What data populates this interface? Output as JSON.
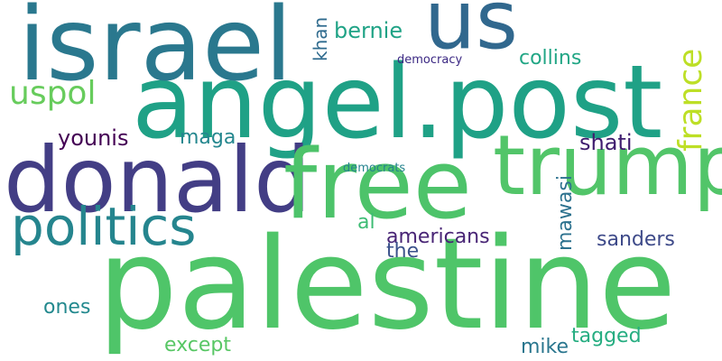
{
  "word_cloud": {
    "background": "#ffffff",
    "words": [
      {
        "text": "palestine",
        "color": "#4fc569"
      },
      {
        "text": "angel.post",
        "color": "#1fa186"
      },
      {
        "text": "israel",
        "color": "#2a788e"
      },
      {
        "text": "us",
        "color": "#31688e"
      },
      {
        "text": "donald",
        "color": "#433e85"
      },
      {
        "text": "free",
        "color": "#4dc36a"
      },
      {
        "text": "trump",
        "color": "#52c569"
      },
      {
        "text": "politics",
        "color": "#25858e"
      },
      {
        "text": "france",
        "color": "#bddf26"
      },
      {
        "text": "uspol",
        "color": "#67cc5c"
      },
      {
        "text": "bernie",
        "color": "#20a386"
      },
      {
        "text": "collins",
        "color": "#21a685"
      },
      {
        "text": "khan",
        "color": "#2f6b8e"
      },
      {
        "text": "democracy",
        "color": "#3b2883"
      },
      {
        "text": "younis",
        "color": "#440154"
      },
      {
        "text": "maga",
        "color": "#24878e"
      },
      {
        "text": "shati",
        "color": "#3f1d6f"
      },
      {
        "text": "democrats",
        "color": "#25838e"
      },
      {
        "text": "al",
        "color": "#3dbc74"
      },
      {
        "text": "mawasi",
        "color": "#2c718e"
      },
      {
        "text": "americans",
        "color": "#482475"
      },
      {
        "text": "the",
        "color": "#3b528b"
      },
      {
        "text": "sanders",
        "color": "#3e4a89"
      },
      {
        "text": "ones",
        "color": "#23898e"
      },
      {
        "text": "except",
        "color": "#58c765"
      },
      {
        "text": "tagged",
        "color": "#26ad81"
      },
      {
        "text": "mike",
        "color": "#2a768e"
      }
    ]
  }
}
